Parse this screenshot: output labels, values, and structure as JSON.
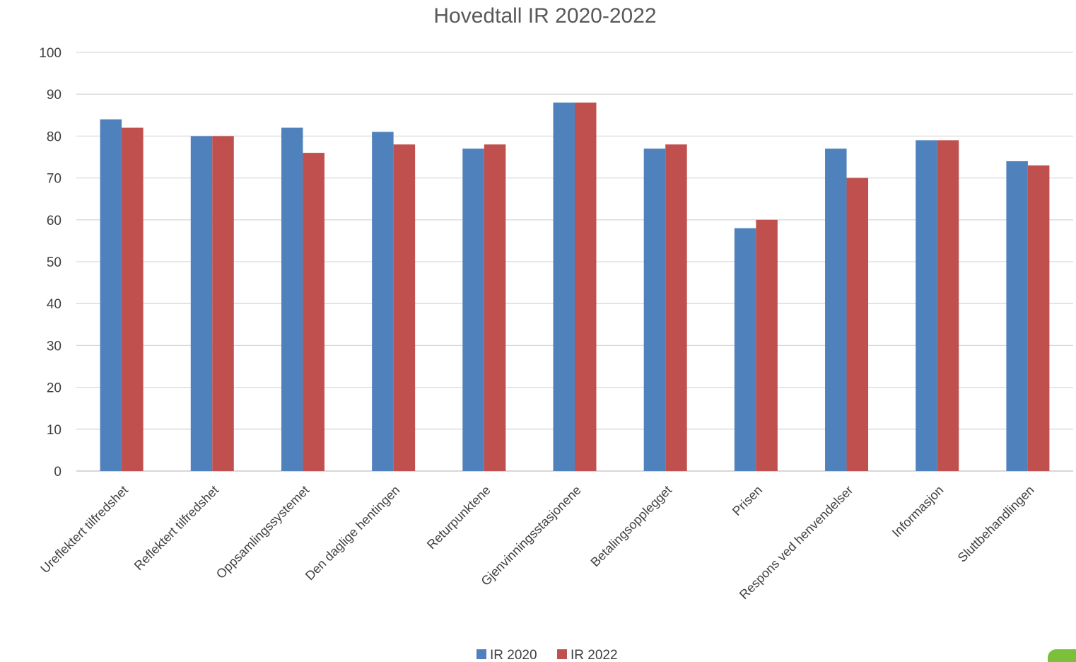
{
  "chart_data": {
    "type": "bar",
    "title": "Hovedtall IR 2020-2022",
    "xlabel": "",
    "ylabel": "",
    "ylim": [
      0,
      100
    ],
    "yticks": [
      0,
      10,
      20,
      30,
      40,
      50,
      60,
      70,
      80,
      90,
      100
    ],
    "grid": true,
    "legend_position": "bottom",
    "categories": [
      "Ureflektert tilfredshet",
      "Reflektert tilfredshet",
      "Oppsamlingssystemet",
      "Den daglige hentingen",
      "Returpunktene",
      "Gjenvinningsstasjonene",
      "Betalingsopplegget",
      "Prisen",
      "Respons ved henvendelser",
      "Informasjon",
      "Sluttbehandlingen"
    ],
    "series": [
      {
        "name": "IR 2020",
        "color": "#4f81bd",
        "values": [
          84,
          80,
          82,
          81,
          77,
          88,
          77,
          58,
          77,
          79,
          74
        ]
      },
      {
        "name": "IR 2022",
        "color": "#c0504d",
        "values": [
          82,
          80,
          76,
          78,
          78,
          88,
          78,
          60,
          70,
          79,
          73
        ]
      }
    ]
  },
  "logo": {
    "accent_color": "#7bbf3a"
  }
}
